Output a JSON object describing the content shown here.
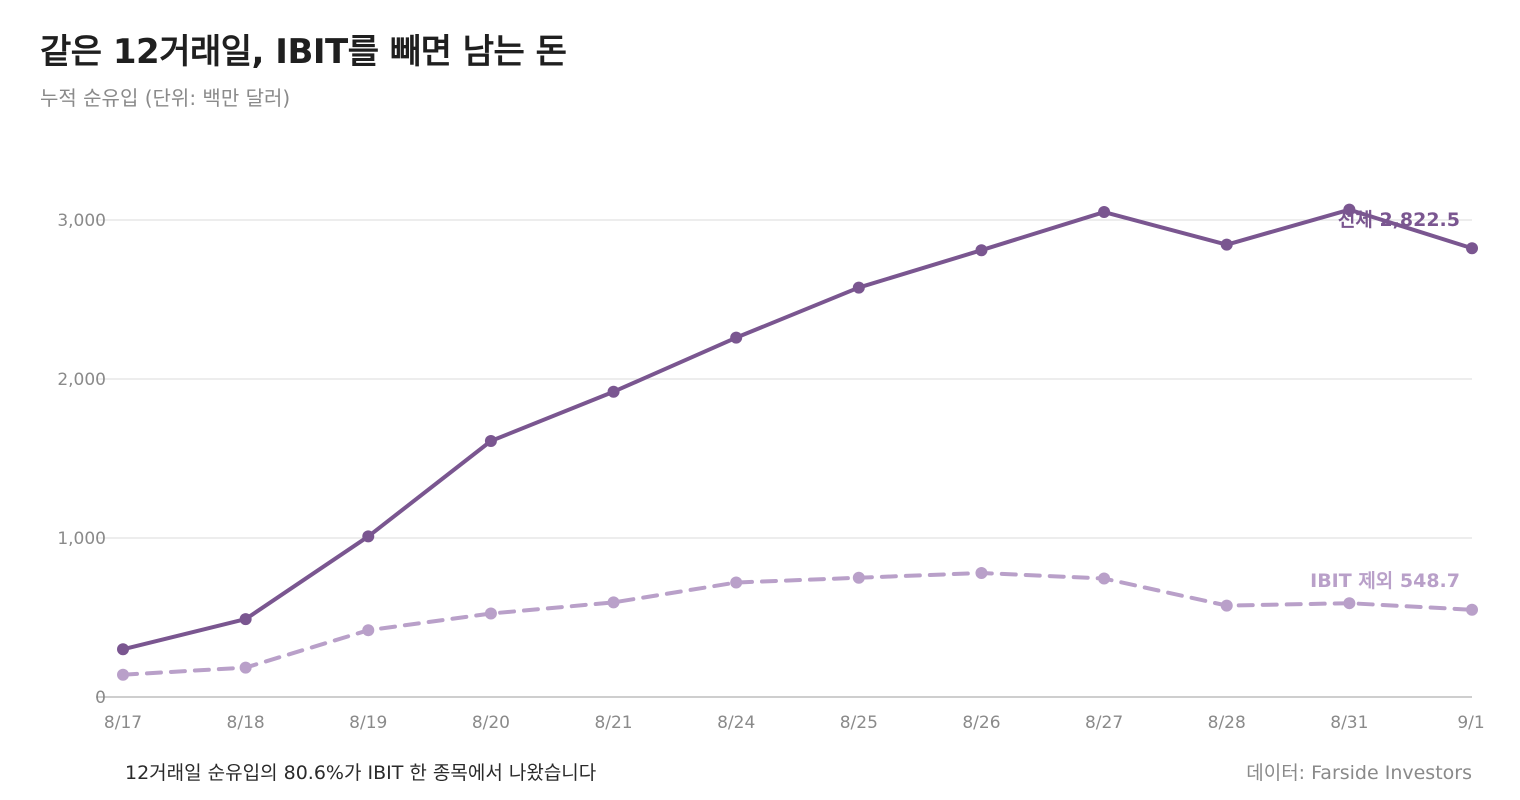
{
  "header": {
    "title": "같은 12거래일, IBIT를 빼면 남는 돈",
    "subtitle": "누적 순유입 (단위: 백만 달러)"
  },
  "footer": {
    "note": "12거래일 순유입의 80.6%가 IBIT 한 종목에서 나왔습니다",
    "source": "데이터: Farside Investors"
  },
  "colors": {
    "total": "#7a5690",
    "ex_ibit": "#b9a0c9",
    "grid": "#e2e2e2",
    "axis": "#bdbdbd"
  },
  "chart_data": {
    "type": "line",
    "categories": [
      "8/17",
      "8/18",
      "8/19",
      "8/20",
      "8/21",
      "8/24",
      "8/25",
      "8/26",
      "8/27",
      "8/28",
      "8/31",
      "9/1"
    ],
    "ylim": [
      0,
      3000
    ],
    "yticks": [
      0,
      1000,
      2000,
      3000
    ],
    "ytick_labels": [
      "0",
      "1,000",
      "2,000",
      "3,000"
    ],
    "grid": true,
    "series": [
      {
        "key": "total",
        "name": "전체",
        "style": "solid",
        "end_label": "전체 2,822.5",
        "values": [
          300,
          490,
          1010,
          1610,
          1920,
          2260,
          2575,
          2810,
          3050,
          2845,
          3065,
          2822.5
        ]
      },
      {
        "key": "ex_ibit",
        "name": "IBIT 제외",
        "style": "dashed",
        "end_label": "IBIT 제외 548.7",
        "values": [
          140,
          185,
          420,
          525,
          595,
          720,
          750,
          780,
          745,
          575,
          590,
          548.7
        ]
      }
    ]
  }
}
